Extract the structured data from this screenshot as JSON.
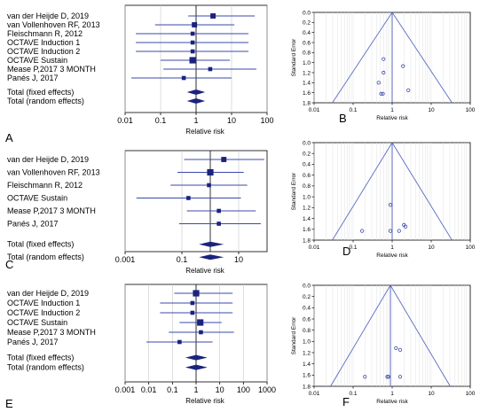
{
  "chart_data": [
    {
      "panel": "A",
      "type": "forest",
      "xlabel": "Relative risk",
      "xscale": "log",
      "xlim": [
        0.01,
        100
      ],
      "ticks": [
        "0.01",
        "0.1",
        "1",
        "10",
        "100"
      ],
      "tick_values": [
        0.01,
        0.1,
        1,
        10,
        100
      ],
      "studies": [
        {
          "label": "van der Heijde D, 2019",
          "rr": 3.0,
          "ci": [
            0.6,
            45
          ],
          "weight": 3
        },
        {
          "label": "van Vollenhoven RF, 2013",
          "rr": 0.9,
          "ci": [
            0.07,
            12
          ],
          "weight": 3
        },
        {
          "label": "Fleischmann R, 2012",
          "rr": 0.8,
          "ci": [
            0.02,
            30
          ],
          "weight": 2
        },
        {
          "label": "OCTAVE Induction 1",
          "rr": 0.8,
          "ci": [
            0.02,
            30
          ],
          "weight": 2
        },
        {
          "label": "OCTAVE Induction 2",
          "rr": 0.8,
          "ci": [
            0.02,
            30
          ],
          "weight": 2
        },
        {
          "label": "OCTAVE Sustain",
          "rr": 0.8,
          "ci": [
            0.1,
            9
          ],
          "weight": 4
        },
        {
          "label": "Mease P,2017 3 MONTH",
          "rr": 2.5,
          "ci": [
            0.12,
            50
          ],
          "weight": 2
        },
        {
          "label": "Panés J, 2017",
          "rr": 0.45,
          "ci": [
            0.015,
            10
          ],
          "weight": 2
        }
      ],
      "pooled": [
        {
          "label": "Total (fixed effects)",
          "rr": 1.0,
          "ci": [
            0.55,
            1.8
          ]
        },
        {
          "label": "Total (random effects)",
          "rr": 1.0,
          "ci": [
            0.55,
            1.8
          ]
        }
      ]
    },
    {
      "panel": "B",
      "type": "scatter",
      "xlabel": "Relative risk",
      "ylabel": "Standard Error",
      "xscale": "log",
      "xlim": [
        0.01,
        100
      ],
      "ylim": [
        0,
        1.8
      ],
      "yreversed": true,
      "ticks": [
        "0.01",
        "0.1",
        "1",
        "10",
        "100"
      ],
      "tick_values": [
        0.01,
        0.1,
        1,
        10,
        100
      ],
      "yticks": [
        "0.0",
        "0.2",
        "0.4",
        "0.6",
        "0.8",
        "1.0",
        "1.2",
        "1.4",
        "1.6",
        "1.8"
      ],
      "ytick_values": [
        0,
        0.2,
        0.4,
        0.6,
        0.8,
        1.0,
        1.2,
        1.4,
        1.6,
        1.8
      ],
      "center": 1.0,
      "points": [
        {
          "x": 0.6,
          "y": 0.93
        },
        {
          "x": 0.6,
          "y": 1.2
        },
        {
          "x": 1.9,
          "y": 1.07
        },
        {
          "x": 0.45,
          "y": 1.4
        },
        {
          "x": 0.52,
          "y": 1.62
        },
        {
          "x": 0.58,
          "y": 1.62
        },
        {
          "x": 2.6,
          "y": 1.55
        }
      ]
    },
    {
      "panel": "C",
      "type": "forest",
      "xlabel": "Relative risk",
      "xscale": "log",
      "xlim": [
        0.001,
        100
      ],
      "ticks": [
        "0.001",
        "0.1",
        "10"
      ],
      "tick_values": [
        0.001,
        0.1,
        10
      ],
      "studies": [
        {
          "label": "van der Heijde D, 2019",
          "rr": 3.0,
          "ci": [
            0.12,
            80
          ],
          "weight": 3
        },
        {
          "label": "van Vollenhoven RF, 2013",
          "rr": 1.0,
          "ci": [
            0.07,
            15
          ],
          "weight": 4
        },
        {
          "label": "Fleischmann R, 2012",
          "rr": 0.9,
          "ci": [
            0.04,
            20
          ],
          "weight": 2
        },
        {
          "label": "OCTAVE Sustain",
          "rr": 0.17,
          "ci": [
            0.0025,
            12
          ],
          "weight": 2
        },
        {
          "label": "Mease P,2017 3 MONTH",
          "rr": 2.0,
          "ci": [
            0.15,
            40
          ],
          "weight": 2
        },
        {
          "label": "Panés J, 2017",
          "rr": 2.0,
          "ci": [
            0.08,
            60
          ],
          "weight": 2
        }
      ],
      "pooled": [
        {
          "label": "Total (fixed effects)",
          "rr": 1.0,
          "ci": [
            0.4,
            3.0
          ]
        },
        {
          "label": "Total (random effects)",
          "rr": 1.0,
          "ci": [
            0.4,
            3.0
          ]
        }
      ]
    },
    {
      "panel": "D",
      "type": "scatter",
      "xlabel": "Relative risk",
      "ylabel": "Standard Error",
      "xscale": "log",
      "xlim": [
        0.01,
        100
      ],
      "ylim": [
        0,
        1.8
      ],
      "yreversed": true,
      "ticks": [
        "0.01",
        "0.1",
        "1",
        "10",
        "100"
      ],
      "tick_values": [
        0.01,
        0.1,
        1,
        10,
        100
      ],
      "yticks": [
        "0.0",
        "0.2",
        "0.4",
        "0.6",
        "0.8",
        "1.0",
        "1.2",
        "1.4",
        "1.6",
        "1.8"
      ],
      "ytick_values": [
        0,
        0.2,
        0.4,
        0.6,
        0.8,
        1.0,
        1.2,
        1.4,
        1.6,
        1.8
      ],
      "center": 1.0,
      "points": [
        {
          "x": 0.9,
          "y": 1.15
        },
        {
          "x": 0.17,
          "y": 1.63
        },
        {
          "x": 0.9,
          "y": 1.63
        },
        {
          "x": 1.5,
          "y": 1.63
        },
        {
          "x": 2.0,
          "y": 1.52
        },
        {
          "x": 2.2,
          "y": 1.55
        }
      ]
    },
    {
      "panel": "E",
      "type": "forest",
      "xlabel": "Relative risk",
      "xscale": "log",
      "xlim": [
        0.001,
        1000
      ],
      "ticks": [
        "0.001",
        "0.01",
        "0.1",
        "1",
        "10",
        "100",
        "1000"
      ],
      "tick_values": [
        0.001,
        0.01,
        0.1,
        1,
        10,
        100,
        1000
      ],
      "studies": [
        {
          "label": "van der Heijde D, 2019",
          "rr": 1.0,
          "ci": [
            0.12,
            35
          ],
          "weight": 4
        },
        {
          "label": "OCTAVE Induction 1",
          "rr": 0.7,
          "ci": [
            0.03,
            35
          ],
          "weight": 2
        },
        {
          "label": "OCTAVE Induction 2",
          "rr": 0.7,
          "ci": [
            0.03,
            35
          ],
          "weight": 2
        },
        {
          "label": "OCTAVE Sustain",
          "rr": 1.5,
          "ci": [
            0.2,
            12
          ],
          "weight": 4
        },
        {
          "label": "Mease P,2017 3 MONTH",
          "rr": 1.6,
          "ci": [
            0.07,
            40
          ],
          "weight": 2
        },
        {
          "label": "Panés J, 2017",
          "rr": 0.2,
          "ci": [
            0.008,
            5
          ],
          "weight": 2
        }
      ],
      "pooled": [
        {
          "label": "Total (fixed effects)",
          "rr": 1.0,
          "ci": [
            0.35,
            3.0
          ]
        },
        {
          "label": "Total (random effects)",
          "rr": 1.0,
          "ci": [
            0.35,
            3.0
          ]
        }
      ]
    },
    {
      "panel": "F",
      "type": "scatter",
      "xlabel": "Relative risk",
      "ylabel": "Standard Error",
      "xscale": "log",
      "xlim": [
        0.01,
        100
      ],
      "ylim": [
        0,
        1.8
      ],
      "yreversed": true,
      "ticks": [
        "0.01",
        "0.1",
        "1",
        "10",
        "100"
      ],
      "tick_values": [
        0.01,
        0.1,
        1,
        10,
        100
      ],
      "yticks": [
        "0.0",
        "0.2",
        "0.4",
        "0.6",
        "0.8",
        "1.0",
        "1.2",
        "1.4",
        "1.6",
        "1.8"
      ],
      "ytick_values": [
        0,
        0.2,
        0.4,
        0.6,
        0.8,
        1.0,
        1.2,
        1.4,
        1.6,
        1.8
      ],
      "center": 0.9,
      "points": [
        {
          "x": 1.25,
          "y": 1.12
        },
        {
          "x": 1.6,
          "y": 1.15
        },
        {
          "x": 0.2,
          "y": 1.63
        },
        {
          "x": 0.75,
          "y": 1.63
        },
        {
          "x": 0.8,
          "y": 1.63
        },
        {
          "x": 1.6,
          "y": 1.63
        }
      ]
    }
  ],
  "colors": {
    "marker": "#1a237e",
    "ci_line": "#3949ab",
    "funnel_line": "#5c6bc0",
    "grid": "#c8c8c8"
  }
}
